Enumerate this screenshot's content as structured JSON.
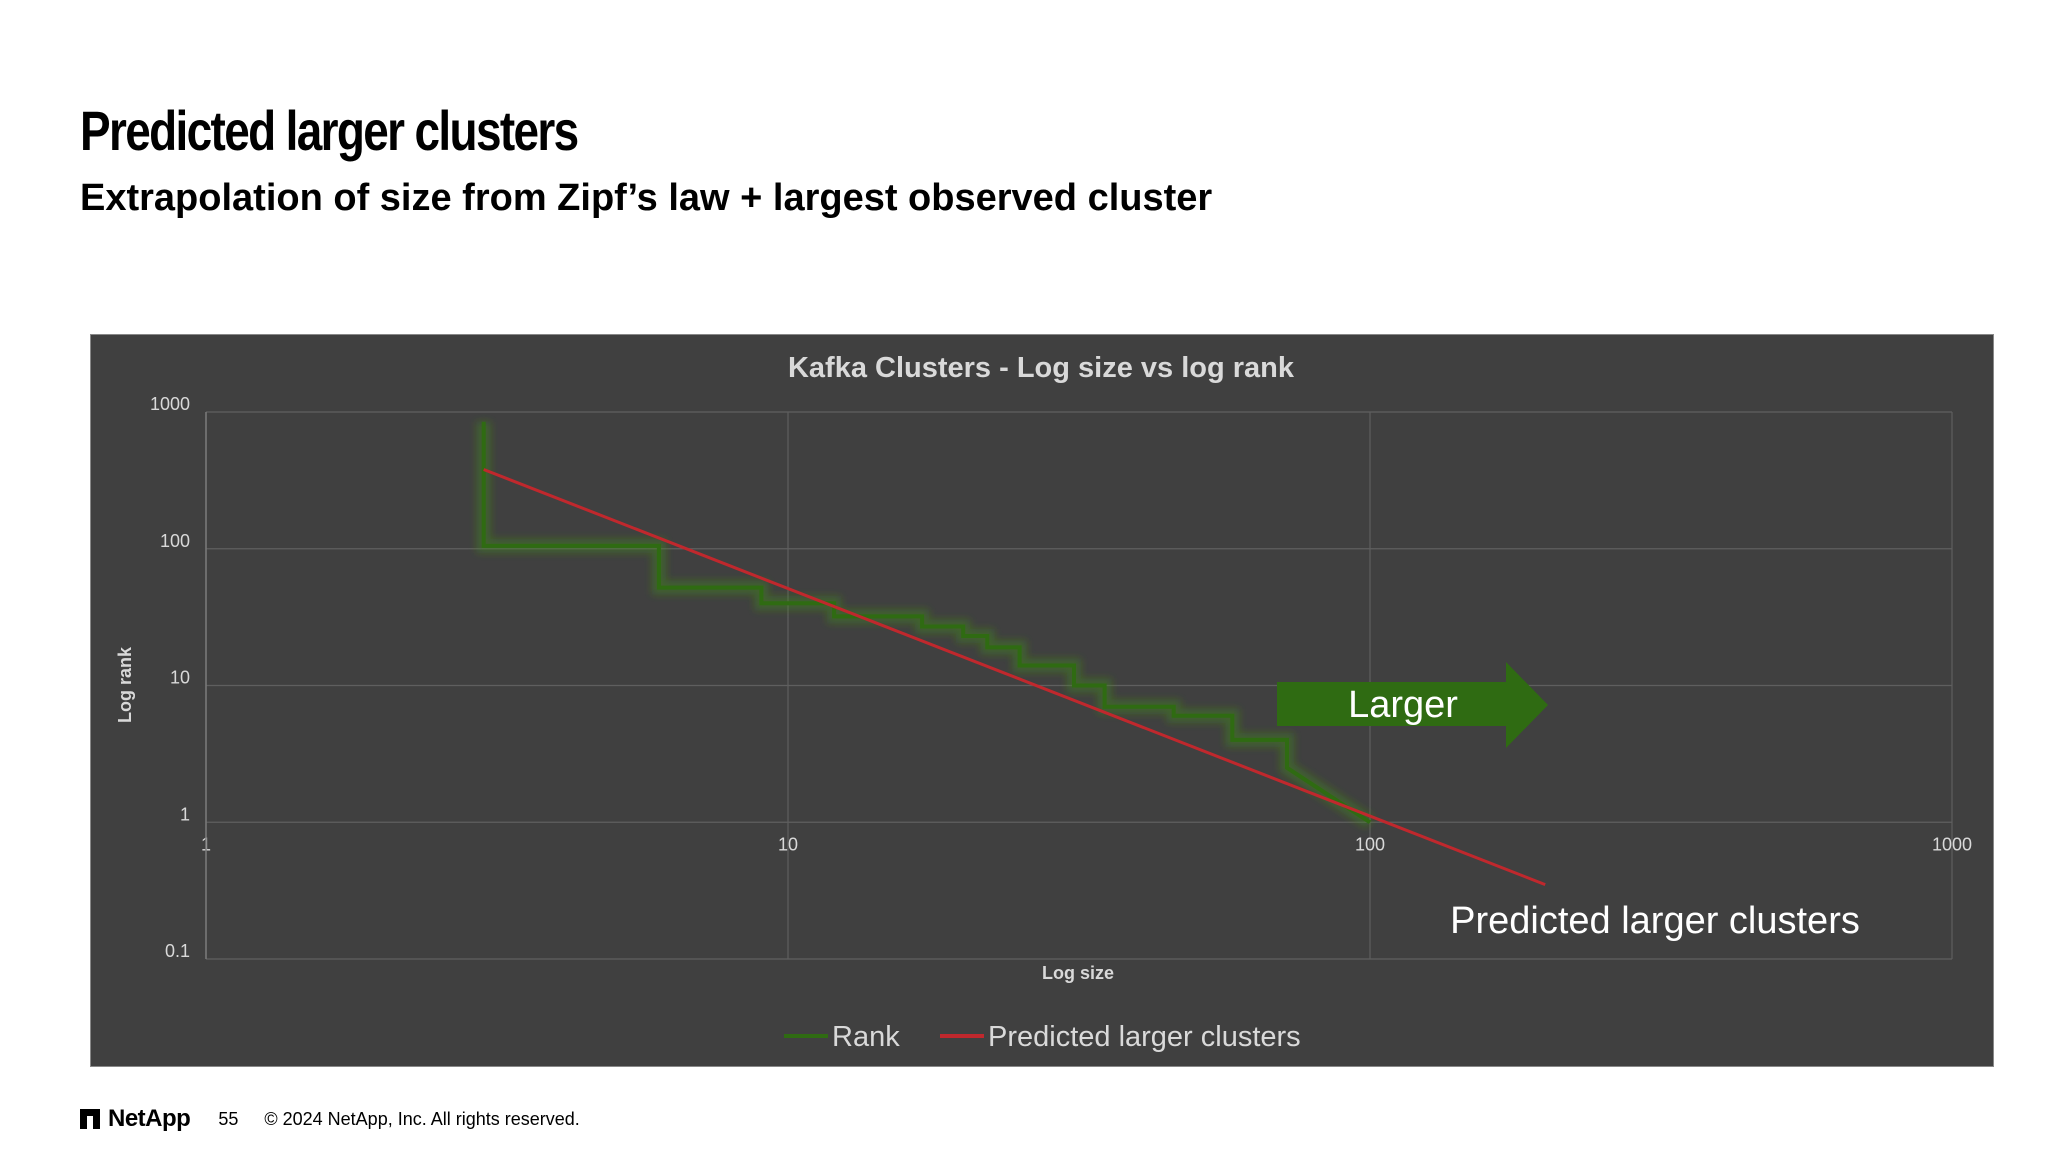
{
  "slide": {
    "title": "Predicted larger clusters",
    "subtitle": "Extrapolation of size from Zipf’s law + largest observed cluster"
  },
  "footer": {
    "logo_text": "NetApp",
    "page_number": "55",
    "copyright": "© 2024 NetApp, Inc. All rights reserved."
  },
  "annotations": {
    "arrow_label": "Larger",
    "prediction_label": "Predicted larger clusters"
  },
  "colors": {
    "background": "#404040",
    "rank_series": "#2f6b12",
    "predicted_series": "#c0282d",
    "arrow": "#2f6b12",
    "text": "#d9d9d9",
    "grid": "#5f5f5f"
  },
  "chart_data": {
    "type": "line",
    "title": "Kafka Clusters - Log size vs log rank",
    "xlabel": "Log size",
    "ylabel": "Log rank",
    "x_scale": "log",
    "y_scale": "log",
    "xlim": [
      1,
      1000
    ],
    "ylim": [
      0.1,
      1000
    ],
    "x_ticks": [
      "1",
      "10",
      "100",
      "1000"
    ],
    "y_ticks": [
      "1000",
      "100",
      "10",
      "1",
      "0.1"
    ],
    "grid": true,
    "legend_position": "bottom",
    "series": [
      {
        "name": "Rank",
        "style": "step",
        "color": "#2f6b12",
        "x": [
          3,
          3,
          6,
          6,
          9,
          9,
          12,
          12,
          17,
          17,
          20,
          20,
          22,
          22,
          25,
          25,
          31,
          31,
          35,
          35,
          46,
          46,
          58,
          58,
          72,
          72,
          100
        ],
        "y": [
          850,
          105,
          105,
          52,
          52,
          40,
          40,
          32,
          32,
          27,
          27,
          23,
          23,
          19,
          19,
          14,
          14,
          10,
          10,
          7,
          7,
          6,
          6,
          4,
          4,
          2.5,
          1
        ]
      },
      {
        "name": "Predicted larger clusters",
        "style": "line",
        "color": "#c0282d",
        "x": [
          3,
          200
        ],
        "y": [
          380,
          0.35
        ]
      }
    ]
  }
}
